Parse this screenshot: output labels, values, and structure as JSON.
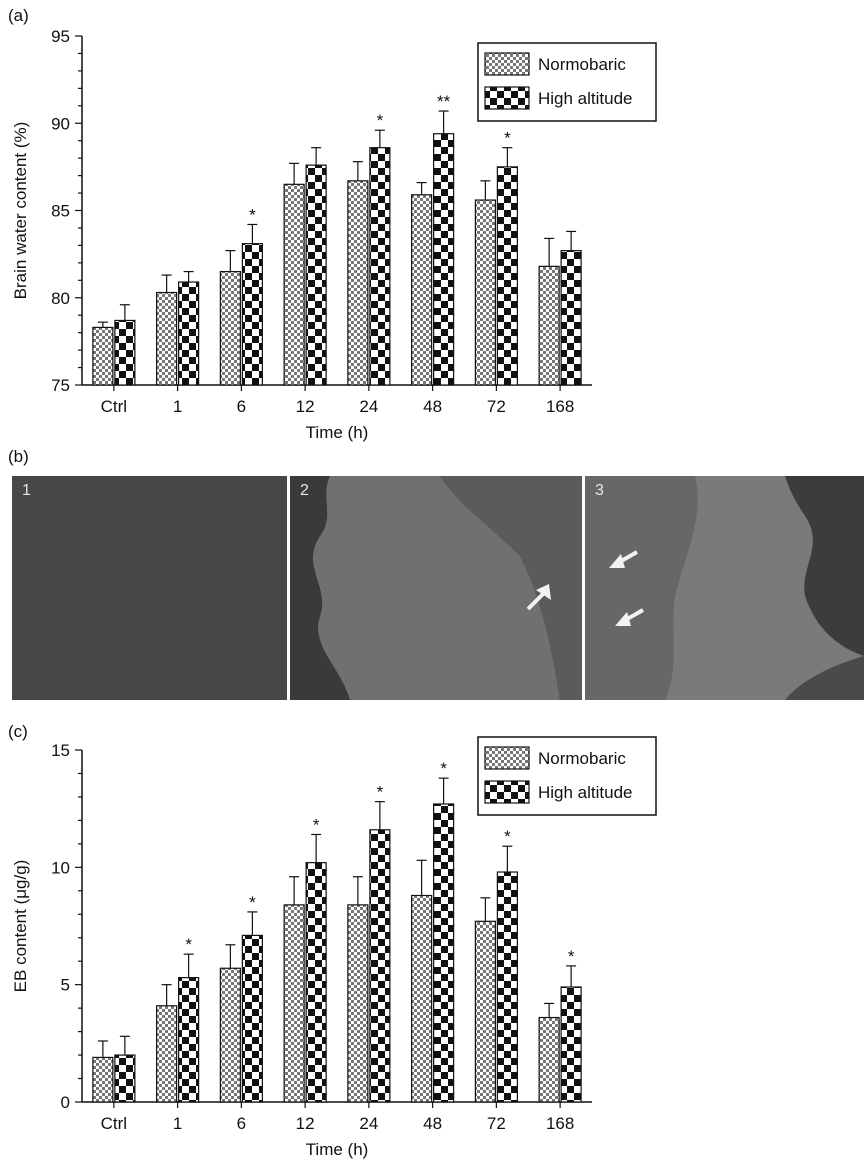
{
  "panels": {
    "a": "(a)",
    "b": "(b)",
    "c": "(c)"
  },
  "colors": {
    "normobaric": "#888888",
    "high_altitude": "#1a1a1a"
  },
  "chart_data": [
    {
      "id": "a",
      "type": "bar",
      "categories": [
        "Ctrl",
        "1",
        "6",
        "12",
        "24",
        "48",
        "72",
        "168"
      ],
      "xlabel": "Time (h)",
      "ylabel": "Brain water content (%)",
      "ylim": [
        75,
        95
      ],
      "yticks": [
        75,
        80,
        85,
        90,
        95
      ],
      "legend_position": "top-right",
      "series": [
        {
          "name": "Normobaric",
          "values": [
            78.3,
            80.3,
            81.5,
            86.5,
            86.7,
            85.9,
            85.6,
            81.8
          ],
          "errors": [
            0.3,
            1.0,
            1.2,
            1.2,
            1.1,
            0.7,
            1.1,
            1.6
          ],
          "significance": [
            "",
            "",
            "",
            "",
            "",
            "",
            "",
            ""
          ]
        },
        {
          "name": "High altitude",
          "values": [
            78.7,
            80.9,
            83.1,
            87.6,
            88.6,
            89.4,
            87.5,
            82.7
          ],
          "errors": [
            0.9,
            0.6,
            1.1,
            1.0,
            1.0,
            1.3,
            1.1,
            1.1
          ],
          "significance": [
            "",
            "",
            "*",
            "",
            "*",
            "**",
            "*",
            ""
          ]
        }
      ]
    },
    {
      "id": "c",
      "type": "bar",
      "categories": [
        "Ctrl",
        "1",
        "6",
        "12",
        "24",
        "48",
        "72",
        "168"
      ],
      "xlabel": "Time (h)",
      "ylabel": "EB content (μg/g)",
      "ylim": [
        0,
        15
      ],
      "yticks": [
        0,
        5,
        10,
        15
      ],
      "legend_position": "top-right",
      "series": [
        {
          "name": "Normobaric",
          "values": [
            1.9,
            4.1,
            5.7,
            8.4,
            8.4,
            8.8,
            7.7,
            3.6
          ],
          "errors": [
            0.7,
            0.9,
            1.0,
            1.2,
            1.2,
            1.5,
            1.0,
            0.6
          ],
          "significance": [
            "",
            "",
            "",
            "",
            "",
            "",
            "",
            ""
          ]
        },
        {
          "name": "High altitude",
          "values": [
            2.0,
            5.3,
            7.1,
            10.2,
            11.6,
            12.7,
            9.8,
            4.9
          ],
          "errors": [
            0.8,
            1.0,
            1.0,
            1.2,
            1.2,
            1.1,
            1.1,
            0.9
          ],
          "significance": [
            "",
            "*",
            "*",
            "*",
            "*",
            "*",
            "*",
            "*"
          ]
        }
      ]
    }
  ],
  "photos": [
    {
      "label": "1",
      "shade": "#474747"
    },
    {
      "label": "2",
      "shade": "#6e6e6e"
    },
    {
      "label": "3",
      "shade": "#7a7a7a"
    }
  ]
}
